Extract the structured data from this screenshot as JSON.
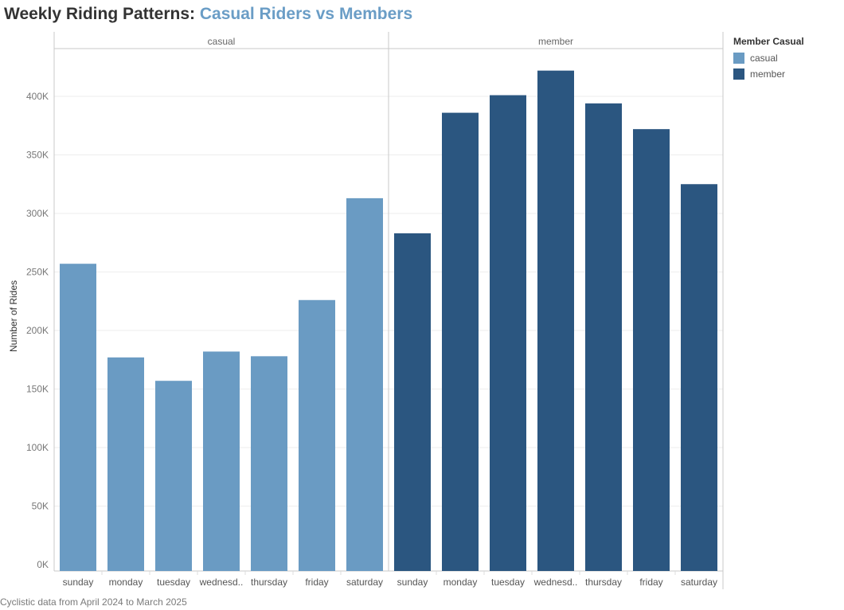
{
  "chart_data": {
    "type": "bar",
    "title": "Weekly Riding Patterns:",
    "title_accent": "Casual Riders vs Members",
    "ylabel": "Number of Rides",
    "xlabel": "",
    "ylim": [
      0,
      440000
    ],
    "yticks": [
      {
        "value": 0,
        "label": "0K"
      },
      {
        "value": 50000,
        "label": "50K"
      },
      {
        "value": 100000,
        "label": "100K"
      },
      {
        "value": 150000,
        "label": "150K"
      },
      {
        "value": 200000,
        "label": "200K"
      },
      {
        "value": 250000,
        "label": "250K"
      },
      {
        "value": 300000,
        "label": "300K"
      },
      {
        "value": 350000,
        "label": "350K"
      },
      {
        "value": 400000,
        "label": "400K"
      }
    ],
    "panels": [
      {
        "name": "casual",
        "color": "#6a9bc3",
        "categories": [
          "sunday",
          "monday",
          "tuesday",
          "wednesd..",
          "thursday",
          "friday",
          "saturday"
        ],
        "values": [
          257000,
          177000,
          157000,
          182000,
          178000,
          226000,
          313000
        ]
      },
      {
        "name": "member",
        "color": "#2b5680",
        "categories": [
          "sunday",
          "monday",
          "tuesday",
          "wednesd..",
          "thursday",
          "friday",
          "saturday"
        ],
        "values": [
          283000,
          386000,
          401000,
          422000,
          394000,
          372000,
          325000
        ]
      }
    ],
    "grid": true,
    "legend_position": "right",
    "legend": {
      "title": "Member Casual",
      "items": [
        {
          "label": "casual",
          "color": "#6a9bc3"
        },
        {
          "label": "member",
          "color": "#2b5680"
        }
      ]
    }
  },
  "footer": "Cyclistic data from April 2024 to March 2025"
}
